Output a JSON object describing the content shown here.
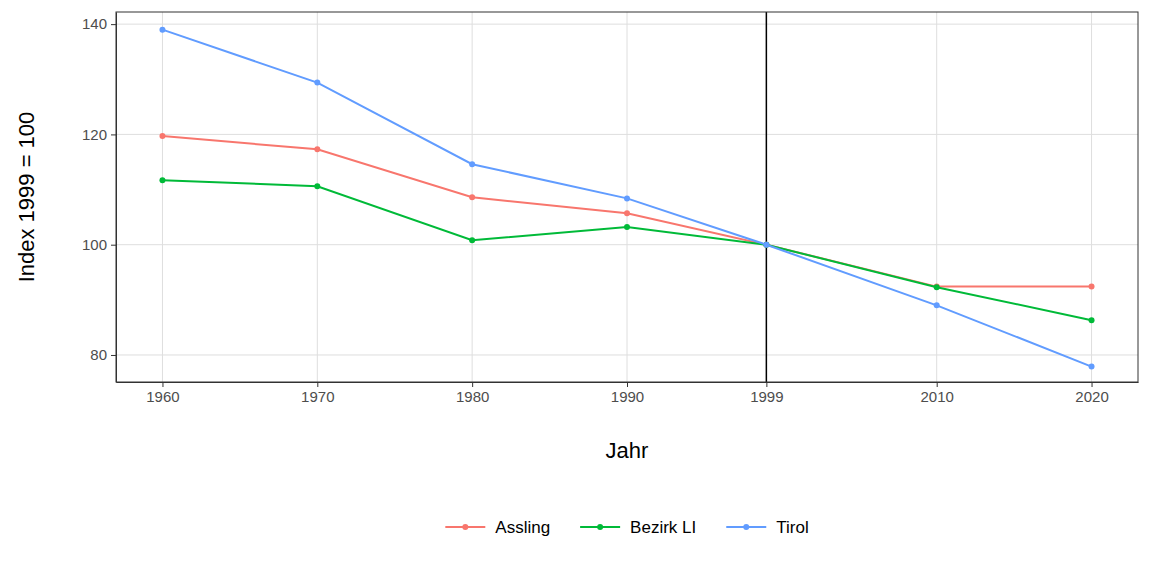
{
  "chart_data": {
    "type": "line",
    "x_label": "Jahr",
    "y_label": "Index 1999 = 100",
    "x": [
      1960,
      1970,
      1980,
      1990,
      1999,
      2010,
      2020
    ],
    "series": [
      {
        "name": "Assling",
        "color": "#F8766D",
        "marker": "circle",
        "values": [
          119.7,
          117.3,
          108.6,
          105.7,
          100,
          92.4,
          92.4
        ]
      },
      {
        "name": "Bezirk LI",
        "color": "#00BA38",
        "marker": "circle",
        "values": [
          111.7,
          110.6,
          100.8,
          103.2,
          100,
          92.3,
          86.3
        ]
      },
      {
        "name": "Tirol",
        "color": "#619CFF",
        "marker": "circle",
        "values": [
          139.0,
          129.4,
          114.6,
          108.4,
          100,
          89.0,
          77.9
        ]
      }
    ],
    "xlim": [
      1957,
      2023
    ],
    "xticks": [
      1960,
      1970,
      1980,
      1990,
      1999,
      2010,
      2020
    ],
    "ylim": [
      75.1,
      142.2
    ],
    "yticks": [
      80,
      100,
      120,
      140
    ],
    "vline": 1999,
    "grid": true,
    "legend": "bottom"
  }
}
